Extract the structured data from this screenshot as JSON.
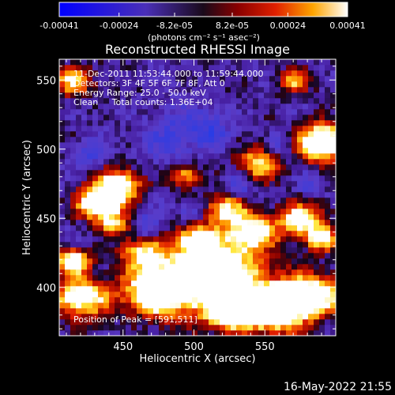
{
  "chart_data": {
    "type": "heatmap",
    "title": "Reconstructed RHESSI Image",
    "xlabel": "Heliocentric X (arcsec)",
    "ylabel": "Heliocentric Y (arcsec)",
    "xlim": [
      405,
      600
    ],
    "ylim": [
      365,
      565
    ],
    "x_ticks": [
      450,
      500,
      550
    ],
    "y_ticks": [
      400,
      450,
      500,
      550
    ],
    "colorbar": {
      "range": [
        -0.00041,
        0.00041
      ],
      "tick_values": [
        -0.00041,
        -0.00024,
        -8.2e-05,
        8.2e-05,
        0.00024,
        0.00041
      ],
      "tick_labels": [
        "-0.00041",
        "-0.00024",
        "-8.2e-05",
        "8.2e-05",
        "0.00024",
        "0.00041"
      ],
      "units_label": "(photons cm⁻² s⁻¹ asec⁻²)"
    },
    "annotations": {
      "time_range": "11-Dec-2011 11:53:44.000 to 11:59:44.000",
      "detectors": "Detectors: 3F 4F 5F 6F 7F 8F, Att 0",
      "energy_range": "Energy Range: 25.0 - 50.0 keV",
      "method_counts": "Clean     Total counts: 1.36E+04",
      "peak_position": "Position of Peak = [591,511]"
    },
    "peak": {
      "x": 591,
      "y": 511
    },
    "grid": false,
    "colors": {
      "background": "#000000",
      "foreground": "#ffffff"
    }
  },
  "footer": {
    "timestamp": "16-May-2022 21:55"
  }
}
